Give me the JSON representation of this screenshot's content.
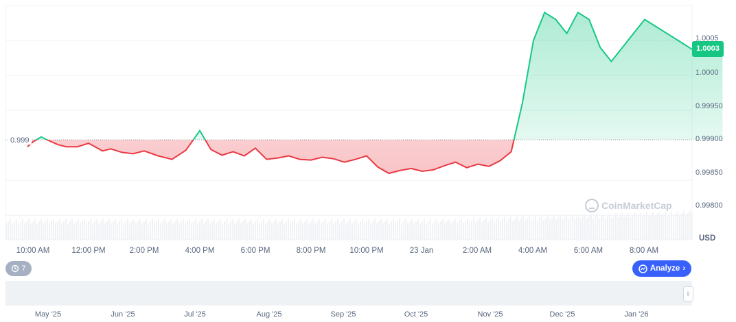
{
  "chart_data": {
    "type": "area",
    "quote_currency": "USD",
    "current_price": "1.0003",
    "reference_price": "0.999",
    "watermark": "CoinMarketCap",
    "y_ticks": [
      "1.0005",
      "1.0000",
      "0.99950",
      "0.99900",
      "0.99850",
      "0.99800"
    ],
    "ylim": [
      0.99765,
      1.001
    ],
    "x_ticks": [
      "10:00 AM",
      "12:00 PM",
      "2:00 PM",
      "4:00 PM",
      "6:00 PM",
      "8:00 PM",
      "10:00 PM",
      "23 Jan",
      "2:00 AM",
      "4:00 AM",
      "6:00 AM",
      "8:00 AM"
    ],
    "navigator_ticks": [
      "May '25",
      "Jun '25",
      "Jul '25",
      "Aug '25",
      "Sep '25",
      "Oct '25",
      "Nov '25",
      "Dec '25",
      "Jan '26"
    ],
    "colors": {
      "up": "#16c784",
      "down": "#ea3943",
      "grid": "#eff2f5",
      "accent": "#3861fb"
    },
    "series": [
      {
        "x_hours_from_10am": [
          -0.2,
          0.0,
          0.3,
          0.5,
          0.9,
          1.2,
          1.6,
          2.0,
          2.5,
          2.8,
          3.2,
          3.6,
          4.0,
          4.5,
          5.0,
          5.5,
          6.0,
          6.4,
          6.8,
          7.2,
          7.6,
          8.0,
          8.4,
          8.8,
          9.2,
          9.6,
          10.0,
          10.4,
          10.8,
          11.2,
          11.6,
          12.0,
          12.4,
          12.8,
          13.2,
          13.6,
          14.0,
          14.4,
          14.8,
          15.2,
          15.6,
          16.0,
          16.4,
          16.8,
          17.2,
          17.6,
          18.0,
          18.4,
          18.8,
          19.2,
          19.6,
          20.0,
          20.4,
          20.8,
          21.2,
          21.6,
          22.0,
          22.4,
          22.8,
          23.2,
          23.6,
          24.0,
          24.4,
          24.8
        ],
        "values": [
          0.99898,
          0.99905,
          0.99912,
          0.99908,
          0.99901,
          0.99898,
          0.99898,
          0.99903,
          0.99892,
          0.99895,
          0.9989,
          0.99888,
          0.99892,
          0.99885,
          0.9988,
          0.99893,
          0.99921,
          0.99894,
          0.99886,
          0.99891,
          0.99885,
          0.99896,
          0.9988,
          0.99882,
          0.99885,
          0.9988,
          0.99879,
          0.99883,
          0.99881,
          0.99876,
          0.9988,
          0.99885,
          0.99869,
          0.9986,
          0.99864,
          0.99867,
          0.99863,
          0.99865,
          0.99871,
          0.99876,
          0.99868,
          0.99873,
          0.9987,
          0.99878,
          0.99891,
          0.9996,
          1.0005,
          1.0009,
          1.0008,
          1.0006,
          1.0009,
          1.0008,
          1.0004,
          1.0002,
          1.0004,
          1.0006,
          1.0008,
          1.0007,
          1.0006,
          1.0005,
          1.0004,
          1.0003,
          1.00035,
          1.0003
        ]
      }
    ]
  },
  "controls": {
    "history_count": "7",
    "analyze_label": "Analyze",
    "history_icon": "history-icon",
    "analyze_icon": "analyze-icon"
  }
}
